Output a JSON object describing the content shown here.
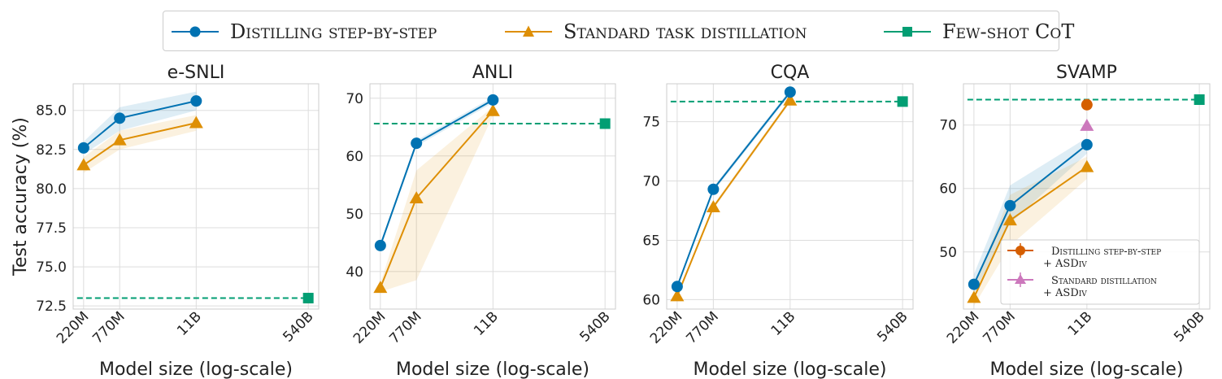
{
  "colors": {
    "distill": "#0072b2",
    "standard": "#de8f05",
    "fewshot": "#029e73",
    "asdiv_distill": "#d55e00",
    "asdiv_standard": "#cc78bc"
  },
  "legend": {
    "items": [
      {
        "label": "Distilling step-by-step",
        "color": "#0072b2",
        "marker": "circle-marker-icon"
      },
      {
        "label": "Standard task distillation",
        "color": "#de8f05",
        "marker": "triangle-marker-icon"
      },
      {
        "label": "Few-shot CoT",
        "color": "#029e73",
        "marker": "square-marker-icon"
      }
    ]
  },
  "chart_data": [
    {
      "type": "line",
      "title": "e-SNLI",
      "xlabel": "Model size (log-scale)",
      "ylabel": "Test accuracy (%)",
      "x_scale": "log",
      "x_ticks": [
        "220M",
        "770M",
        "11B",
        "540B"
      ],
      "x_tick_values": [
        220000000,
        770000000,
        11000000000,
        540000000000
      ],
      "ylim": [
        72.3,
        86.7
      ],
      "y_ticks": [
        72.5,
        75.0,
        77.5,
        80.0,
        82.5,
        85.0
      ],
      "y_tick_labels": [
        "72.5",
        "75.0",
        "77.5",
        "80.0",
        "82.5",
        "85.0"
      ],
      "grid": true,
      "series": [
        {
          "name": "Distilling step-by-step",
          "x": [
            220000000,
            770000000,
            11000000000
          ],
          "y": [
            82.6,
            84.5,
            85.6
          ],
          "band_low": [
            82.2,
            83.7,
            85.0
          ],
          "band_high": [
            83.0,
            85.2,
            86.2
          ]
        },
        {
          "name": "Standard task distillation",
          "x": [
            220000000,
            770000000,
            11000000000
          ],
          "y": [
            81.5,
            83.1,
            84.2
          ],
          "band_low": [
            81.0,
            82.5,
            83.7
          ],
          "band_high": [
            82.0,
            83.7,
            84.7
          ]
        }
      ],
      "fewshot": {
        "name": "Few-shot CoT",
        "x": 540000000000,
        "y": 73.0
      }
    },
    {
      "type": "line",
      "title": "ANLI",
      "xlabel": "Model size (log-scale)",
      "ylabel": "",
      "x_scale": "log",
      "x_ticks": [
        "220M",
        "770M",
        "11B",
        "540B"
      ],
      "x_tick_values": [
        220000000,
        770000000,
        11000000000,
        540000000000
      ],
      "ylim": [
        33.5,
        72.5
      ],
      "y_ticks": [
        40,
        50,
        60,
        70
      ],
      "y_tick_labels": [
        "40",
        "50",
        "60",
        "70"
      ],
      "grid": true,
      "series": [
        {
          "name": "Distilling step-by-step",
          "x": [
            220000000,
            770000000,
            11000000000
          ],
          "y": [
            44.5,
            62.2,
            69.7
          ],
          "band_low": [
            44.0,
            61.7,
            69.2
          ],
          "band_high": [
            45.0,
            62.7,
            70.2
          ]
        },
        {
          "name": "Standard task distillation",
          "x": [
            220000000,
            770000000,
            11000000000
          ],
          "y": [
            37.2,
            52.7,
            67.8
          ],
          "band_low": [
            36.5,
            38.5,
            67.0
          ],
          "band_high": [
            38.0,
            57.5,
            68.5
          ]
        }
      ],
      "fewshot": {
        "name": "Few-shot CoT",
        "x": 540000000000,
        "y": 65.6
      }
    },
    {
      "type": "line",
      "title": "CQA",
      "xlabel": "Model size (log-scale)",
      "ylabel": "",
      "x_scale": "log",
      "x_ticks": [
        "220M",
        "770M",
        "11B",
        "540B"
      ],
      "x_tick_values": [
        220000000,
        770000000,
        11000000000,
        540000000000
      ],
      "ylim": [
        59.2,
        78.2
      ],
      "y_ticks": [
        60,
        65,
        70,
        75
      ],
      "y_tick_labels": [
        "60",
        "65",
        "70",
        "75"
      ],
      "grid": true,
      "series": [
        {
          "name": "Distilling step-by-step",
          "x": [
            220000000,
            770000000,
            11000000000
          ],
          "y": [
            61.1,
            69.3,
            77.5
          ],
          "band_low": [
            60.9,
            69.1,
            77.3
          ],
          "band_high": [
            61.3,
            69.5,
            77.7
          ]
        },
        {
          "name": "Standard task distillation",
          "x": [
            220000000,
            770000000,
            11000000000
          ],
          "y": [
            60.3,
            67.8,
            76.8
          ],
          "band_low": [
            60.1,
            67.6,
            76.6
          ],
          "band_high": [
            60.5,
            68.0,
            77.0
          ]
        }
      ],
      "fewshot": {
        "name": "Few-shot CoT",
        "x": 540000000000,
        "y": 76.7
      }
    },
    {
      "type": "line",
      "title": "SVAMP",
      "xlabel": "Model size (log-scale)",
      "ylabel": "",
      "x_scale": "log",
      "x_ticks": [
        "220M",
        "770M",
        "11B",
        "540B"
      ],
      "x_tick_values": [
        220000000,
        770000000,
        11000000000,
        540000000000
      ],
      "ylim": [
        41.0,
        76.5
      ],
      "y_ticks": [
        50,
        60,
        70
      ],
      "y_tick_labels": [
        "50",
        "60",
        "70"
      ],
      "grid": true,
      "series": [
        {
          "name": "Distilling step-by-step",
          "x": [
            220000000,
            770000000,
            11000000000
          ],
          "y": [
            44.9,
            57.3,
            66.9
          ],
          "band_low": [
            43.5,
            54.5,
            65.5
          ],
          "band_high": [
            46.5,
            60.5,
            68.0
          ]
        },
        {
          "name": "Standard task distillation",
          "x": [
            220000000,
            770000000,
            11000000000
          ],
          "y": [
            42.8,
            55.0,
            63.4
          ],
          "band_low": [
            41.5,
            51.0,
            61.5
          ],
          "band_high": [
            44.5,
            59.0,
            65.0
          ]
        }
      ],
      "fewshot": {
        "name": "Few-shot CoT",
        "x": 540000000000,
        "y": 74.0
      },
      "asdiv_points": [
        {
          "x": 11000000000,
          "y": 73.2,
          "marker": "circle-marker-icon",
          "color": "#d55e00"
        },
        {
          "x": 11000000000,
          "y": 69.9,
          "marker": "triangle-marker-icon",
          "color": "#cc78bc"
        }
      ],
      "inset_legend": [
        {
          "lines": [
            "Distilling step-by-step",
            "+ ASDiv"
          ],
          "marker": "circle-marker-icon",
          "color": "#d55e00"
        },
        {
          "lines": [
            "Standard distillation",
            "+ ASDiv"
          ],
          "marker": "triangle-marker-icon",
          "color": "#cc78bc"
        }
      ]
    }
  ]
}
